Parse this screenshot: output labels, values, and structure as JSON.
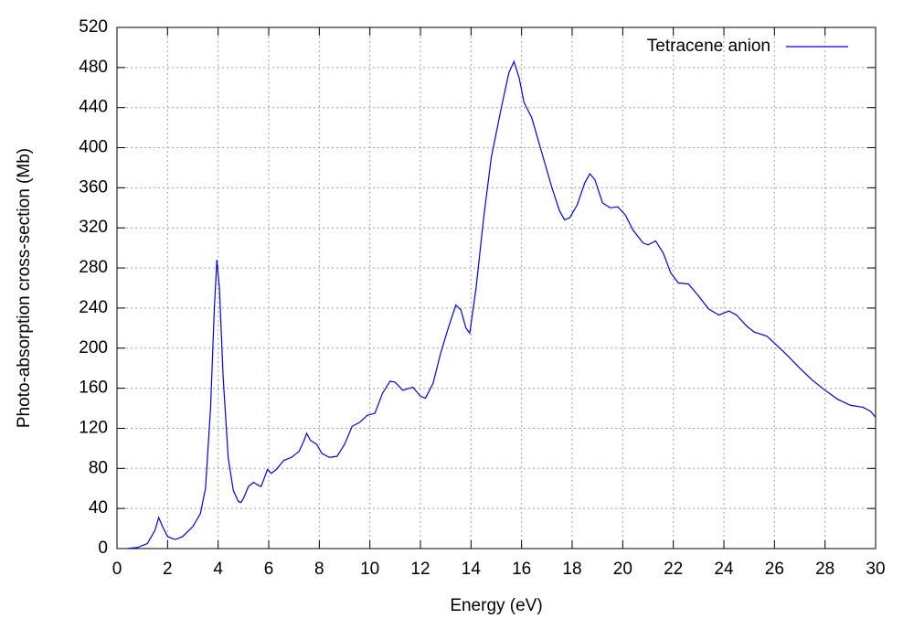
{
  "chart_data": {
    "type": "line",
    "xlabel": "Energy (eV)",
    "ylabel": "Photo-absorption cross-section (Mb)",
    "x": [
      0.4,
      0.8,
      1.2,
      1.5,
      1.65,
      1.8,
      2.0,
      2.3,
      2.6,
      3.0,
      3.3,
      3.5,
      3.7,
      3.85,
      3.95,
      4.05,
      4.2,
      4.4,
      4.6,
      4.8,
      4.9,
      5.0,
      5.2,
      5.4,
      5.6,
      5.7,
      5.85,
      5.95,
      6.1,
      6.3,
      6.6,
      6.9,
      7.2,
      7.4,
      7.5,
      7.65,
      7.9,
      8.1,
      8.4,
      8.7,
      9.0,
      9.3,
      9.6,
      9.9,
      10.2,
      10.5,
      10.8,
      11.0,
      11.3,
      11.7,
      12.0,
      12.2,
      12.5,
      12.8,
      13.1,
      13.4,
      13.6,
      13.8,
      13.95,
      14.2,
      14.5,
      14.8,
      15.2,
      15.5,
      15.7,
      15.9,
      16.1,
      16.4,
      16.8,
      17.2,
      17.5,
      17.7,
      17.9,
      18.2,
      18.5,
      18.7,
      18.9,
      19.2,
      19.5,
      19.8,
      20.1,
      20.4,
      20.8,
      21.0,
      21.3,
      21.6,
      21.9,
      22.2,
      22.6,
      23.0,
      23.4,
      23.8,
      24.2,
      24.5,
      24.9,
      25.2,
      25.7,
      26.0,
      26.5,
      27.0,
      27.5,
      28.0,
      28.5,
      29.0,
      29.5,
      29.8,
      30.0
    ],
    "series": [
      {
        "name": "Tetracene anion",
        "color": "#0000ee",
        "values": [
          0,
          1,
          5,
          18,
          31,
          22,
          12,
          9,
          12,
          22,
          35,
          60,
          140,
          240,
          288,
          260,
          170,
          90,
          58,
          47,
          46,
          50,
          62,
          66,
          63,
          62,
          72,
          79,
          75,
          79,
          88,
          91,
          97,
          108,
          115,
          108,
          104,
          95,
          91,
          92,
          104,
          122,
          126,
          133,
          135,
          155,
          167,
          166,
          158,
          161,
          152,
          150,
          165,
          195,
          220,
          243,
          238,
          220,
          215,
          260,
          330,
          390,
          440,
          475,
          486,
          470,
          445,
          430,
          395,
          360,
          337,
          328,
          330,
          343,
          365,
          374,
          368,
          345,
          340,
          341,
          333,
          318,
          305,
          303,
          307,
          295,
          275,
          265,
          264,
          252,
          239,
          233,
          237,
          233,
          222,
          216,
          212,
          205,
          193,
          180,
          168,
          158,
          149,
          143,
          141,
          137,
          131
        ]
      }
    ],
    "xlim": [
      0,
      30
    ],
    "xticks": [
      0,
      2,
      4,
      6,
      8,
      10,
      12,
      14,
      16,
      18,
      20,
      22,
      24,
      26,
      28,
      30
    ],
    "ylim": [
      0,
      520
    ],
    "yticks": [
      0,
      40,
      80,
      120,
      160,
      200,
      240,
      280,
      320,
      360,
      400,
      440,
      480,
      520
    ],
    "grid": true,
    "legend": "top-right"
  }
}
